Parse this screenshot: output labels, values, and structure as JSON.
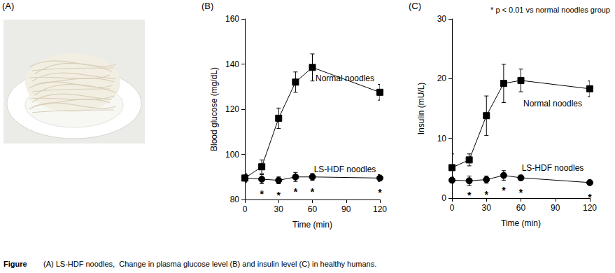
{
  "panel_a": {
    "label": "(A)"
  },
  "chart_data": [
    {
      "type": "line",
      "title": "(B)",
      "xlabel": "Time (min)",
      "ylabel": "Blood glucose (mg/dL)",
      "x": [
        0,
        15,
        30,
        45,
        60,
        120
      ],
      "xlim": [
        0,
        120
      ],
      "xticks": [
        0,
        30,
        60,
        90,
        120
      ],
      "ylim": [
        80,
        160
      ],
      "yticks": [
        80,
        100,
        120,
        140,
        160
      ],
      "grid": false,
      "series": [
        {
          "name": "Normal noodles",
          "color": "#000000",
          "marker": "square",
          "values": [
            89.5,
            94.5,
            116,
            132,
            138.5,
            127.5
          ],
          "errors": [
            1.5,
            3,
            4.5,
            4.5,
            6,
            3.5
          ]
        },
        {
          "name": "LS-HDF noodles",
          "color": "#000000",
          "marker": "circle",
          "values": [
            89.5,
            89,
            88.5,
            90,
            90,
            89.5
          ],
          "errors": [
            2,
            2,
            1.5,
            2,
            1.5,
            1.5
          ]
        }
      ],
      "significance": {
        "label": "*",
        "x": [
          15,
          30,
          45,
          60,
          120
        ]
      }
    },
    {
      "type": "line",
      "title": "(C)",
      "xlabel": "Time (min)",
      "ylabel": "Insulin (mU/L)",
      "annotation": "* p < 0.01 vs normal noodles group",
      "x": [
        0,
        15,
        30,
        45,
        60,
        120
      ],
      "xlim": [
        0,
        120
      ],
      "xticks": [
        0,
        30,
        60,
        90,
        120
      ],
      "ylim": [
        0,
        30
      ],
      "yticks": [
        0,
        10,
        20,
        30
      ],
      "grid": false,
      "series": [
        {
          "name": "Normal noodles",
          "color": "#000000",
          "marker": "square",
          "values": [
            5.1,
            6.4,
            13.8,
            19.2,
            19.7,
            18.3
          ],
          "errors": [
            2.3,
            1,
            3.3,
            3.2,
            1.9,
            1.3
          ]
        },
        {
          "name": "LS-HDF noodles",
          "color": "#000000",
          "marker": "circle",
          "values": [
            3.0,
            2.9,
            3.1,
            3.8,
            3.4,
            2.6
          ],
          "errors": [
            0.5,
            0.8,
            0.6,
            0.8,
            0.4,
            0.4
          ]
        }
      ],
      "significance": {
        "label": "*",
        "x": [
          15,
          30,
          45,
          60,
          120
        ]
      }
    }
  ],
  "caption_label": "Figure",
  "caption": "(A) LS-HDF noodles,  Change in plasma glucose level (B) and insulin level (C) in healthy humans."
}
